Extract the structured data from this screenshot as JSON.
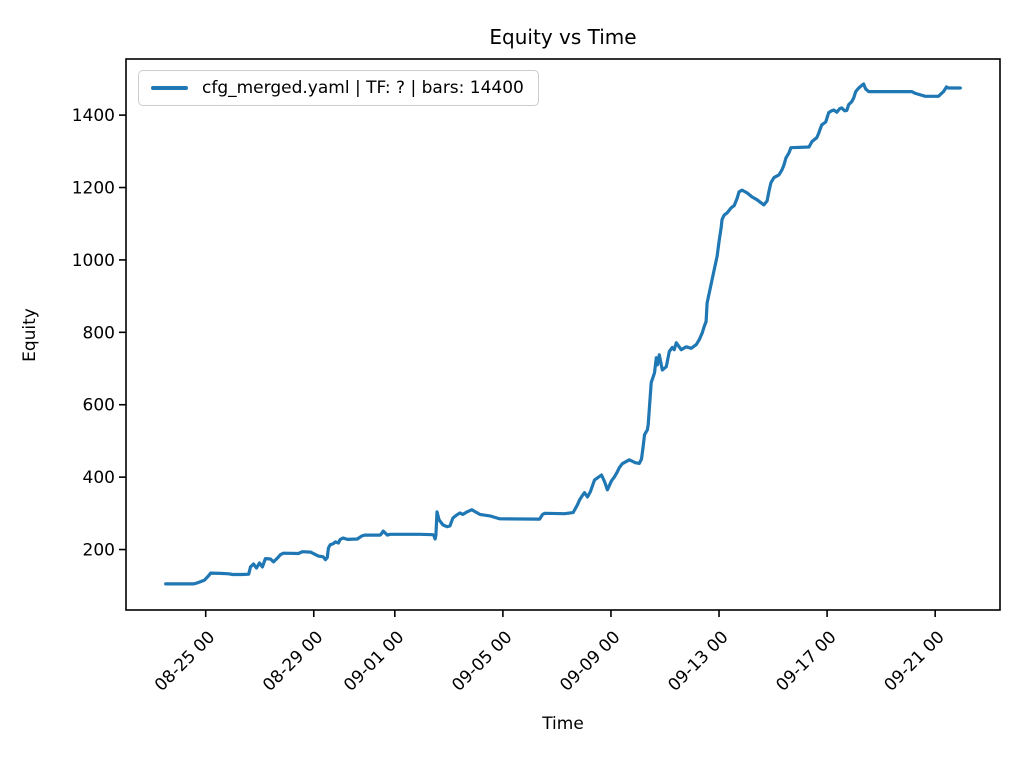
{
  "window": {
    "background": "#ffffff"
  },
  "chart_data": {
    "type": "line",
    "title": "Equity vs Time",
    "xlabel": "Time",
    "ylabel": "Equity",
    "grid": false,
    "legend_position": "upper left",
    "x_axis_note": "x values are in days relative to the 08-25 00 tick",
    "xlim": [
      -2.95,
      29.4
    ],
    "ylim": [
      33,
      1555
    ],
    "xtick_rotation": 45,
    "xticks": [
      {
        "pos": 0,
        "label": "08-25 00"
      },
      {
        "pos": 4,
        "label": "08-29 00"
      },
      {
        "pos": 7,
        "label": "09-01 00"
      },
      {
        "pos": 11,
        "label": "09-05 00"
      },
      {
        "pos": 15,
        "label": "09-09 00"
      },
      {
        "pos": 19,
        "label": "09-13 00"
      },
      {
        "pos": 23,
        "label": "09-17 00"
      },
      {
        "pos": 27,
        "label": "09-21 00"
      }
    ],
    "yticks": [
      200,
      400,
      600,
      800,
      1000,
      1200,
      1400
    ],
    "colors": {
      "line": "#1f77b4",
      "legend_border": "#cccccc",
      "axis": "#000000"
    },
    "series": [
      {
        "name": "cfg_merged.yaml | TF: ? | bars: 14400",
        "color": "#1f77b4",
        "points": [
          [
            -1.48,
            105
          ],
          [
            -0.44,
            105
          ],
          [
            -0.3,
            108
          ],
          [
            -0.05,
            115
          ],
          [
            0.11,
            128
          ],
          [
            0.18,
            135
          ],
          [
            0.55,
            134
          ],
          [
            0.85,
            133
          ],
          [
            1.0,
            131
          ],
          [
            1.35,
            131
          ],
          [
            1.59,
            132
          ],
          [
            1.66,
            152
          ],
          [
            1.77,
            160
          ],
          [
            1.88,
            149
          ],
          [
            1.99,
            163
          ],
          [
            2.1,
            152
          ],
          [
            2.21,
            175
          ],
          [
            2.4,
            174
          ],
          [
            2.51,
            166
          ],
          [
            2.66,
            177
          ],
          [
            2.77,
            186
          ],
          [
            2.88,
            190
          ],
          [
            3.43,
            189
          ],
          [
            3.58,
            194
          ],
          [
            3.88,
            193
          ],
          [
            4.17,
            182
          ],
          [
            4.35,
            180
          ],
          [
            4.43,
            172
          ],
          [
            4.5,
            178
          ],
          [
            4.54,
            204
          ],
          [
            4.61,
            213
          ],
          [
            4.72,
            216
          ],
          [
            4.8,
            221
          ],
          [
            4.91,
            218
          ],
          [
            4.98,
            228
          ],
          [
            5.09,
            232
          ],
          [
            5.24,
            228
          ],
          [
            5.61,
            229
          ],
          [
            5.79,
            238
          ],
          [
            5.9,
            240
          ],
          [
            6.46,
            240
          ],
          [
            6.53,
            246
          ],
          [
            6.57,
            251
          ],
          [
            6.64,
            246
          ],
          [
            6.72,
            240
          ],
          [
            6.83,
            242
          ],
          [
            7.93,
            242
          ],
          [
            8.41,
            241
          ],
          [
            8.45,
            238
          ],
          [
            8.49,
            229
          ],
          [
            8.52,
            240
          ],
          [
            8.56,
            304
          ],
          [
            8.64,
            282
          ],
          [
            8.78,
            268
          ],
          [
            8.93,
            263
          ],
          [
            9.04,
            265
          ],
          [
            9.15,
            287
          ],
          [
            9.3,
            296
          ],
          [
            9.41,
            301
          ],
          [
            9.52,
            297
          ],
          [
            9.67,
            304
          ],
          [
            9.85,
            310
          ],
          [
            9.96,
            305
          ],
          [
            10.15,
            297
          ],
          [
            10.52,
            293
          ],
          [
            10.78,
            287
          ],
          [
            10.89,
            285
          ],
          [
            12.36,
            284
          ],
          [
            12.47,
            297
          ],
          [
            12.55,
            300
          ],
          [
            13.28,
            299
          ],
          [
            13.6,
            302
          ],
          [
            13.76,
            324
          ],
          [
            13.84,
            337
          ],
          [
            13.95,
            350
          ],
          [
            14.02,
            357
          ],
          [
            14.13,
            345
          ],
          [
            14.24,
            360
          ],
          [
            14.39,
            392
          ],
          [
            14.5,
            398
          ],
          [
            14.65,
            406
          ],
          [
            14.76,
            388
          ],
          [
            14.87,
            365
          ],
          [
            15.02,
            390
          ],
          [
            15.13,
            401
          ],
          [
            15.24,
            415
          ],
          [
            15.31,
            426
          ],
          [
            15.42,
            437
          ],
          [
            15.68,
            448
          ],
          [
            15.9,
            440
          ],
          [
            16.05,
            438
          ],
          [
            16.13,
            450
          ],
          [
            16.2,
            490
          ],
          [
            16.24,
            517
          ],
          [
            16.35,
            531
          ],
          [
            16.38,
            545
          ],
          [
            16.49,
            661
          ],
          [
            16.61,
            688
          ],
          [
            16.68,
            730
          ],
          [
            16.72,
            710
          ],
          [
            16.79,
            738
          ],
          [
            16.9,
            696
          ],
          [
            17.05,
            705
          ],
          [
            17.16,
            747
          ],
          [
            17.27,
            758
          ],
          [
            17.34,
            752
          ],
          [
            17.42,
            771
          ],
          [
            17.6,
            752
          ],
          [
            17.79,
            760
          ],
          [
            17.97,
            756
          ],
          [
            18.16,
            766
          ],
          [
            18.27,
            780
          ],
          [
            18.38,
            799
          ],
          [
            18.45,
            816
          ],
          [
            18.52,
            830
          ],
          [
            18.56,
            881
          ],
          [
            18.67,
            920
          ],
          [
            18.82,
            973
          ],
          [
            18.93,
            1010
          ],
          [
            19.0,
            1050
          ],
          [
            19.08,
            1090
          ],
          [
            19.11,
            1111
          ],
          [
            19.19,
            1124
          ],
          [
            19.3,
            1130
          ],
          [
            19.45,
            1144
          ],
          [
            19.56,
            1150
          ],
          [
            19.67,
            1170
          ],
          [
            19.74,
            1188
          ],
          [
            19.85,
            1193
          ],
          [
            20.04,
            1185
          ],
          [
            20.22,
            1174
          ],
          [
            20.41,
            1166
          ],
          [
            20.55,
            1158
          ],
          [
            20.66,
            1152
          ],
          [
            20.78,
            1163
          ],
          [
            20.85,
            1190
          ],
          [
            20.92,
            1213
          ],
          [
            21.03,
            1227
          ],
          [
            21.22,
            1235
          ],
          [
            21.33,
            1249
          ],
          [
            21.4,
            1262
          ],
          [
            21.48,
            1282
          ],
          [
            21.59,
            1296
          ],
          [
            21.66,
            1310
          ],
          [
            22.33,
            1312
          ],
          [
            22.44,
            1327
          ],
          [
            22.62,
            1338
          ],
          [
            22.69,
            1350
          ],
          [
            22.8,
            1373
          ],
          [
            22.95,
            1381
          ],
          [
            23.06,
            1407
          ],
          [
            23.17,
            1412
          ],
          [
            23.25,
            1414
          ],
          [
            23.36,
            1408
          ],
          [
            23.47,
            1418
          ],
          [
            23.54,
            1420
          ],
          [
            23.65,
            1412
          ],
          [
            23.73,
            1413
          ],
          [
            23.8,
            1429
          ],
          [
            23.91,
            1437
          ],
          [
            23.99,
            1448
          ],
          [
            24.06,
            1465
          ],
          [
            24.17,
            1475
          ],
          [
            24.28,
            1482
          ],
          [
            24.35,
            1486
          ],
          [
            24.43,
            1472
          ],
          [
            24.54,
            1465
          ],
          [
            26.13,
            1465
          ],
          [
            26.27,
            1460
          ],
          [
            26.64,
            1452
          ],
          [
            27.12,
            1452
          ],
          [
            27.31,
            1465
          ],
          [
            27.42,
            1478
          ],
          [
            27.49,
            1475
          ],
          [
            27.93,
            1475
          ]
        ]
      }
    ]
  }
}
